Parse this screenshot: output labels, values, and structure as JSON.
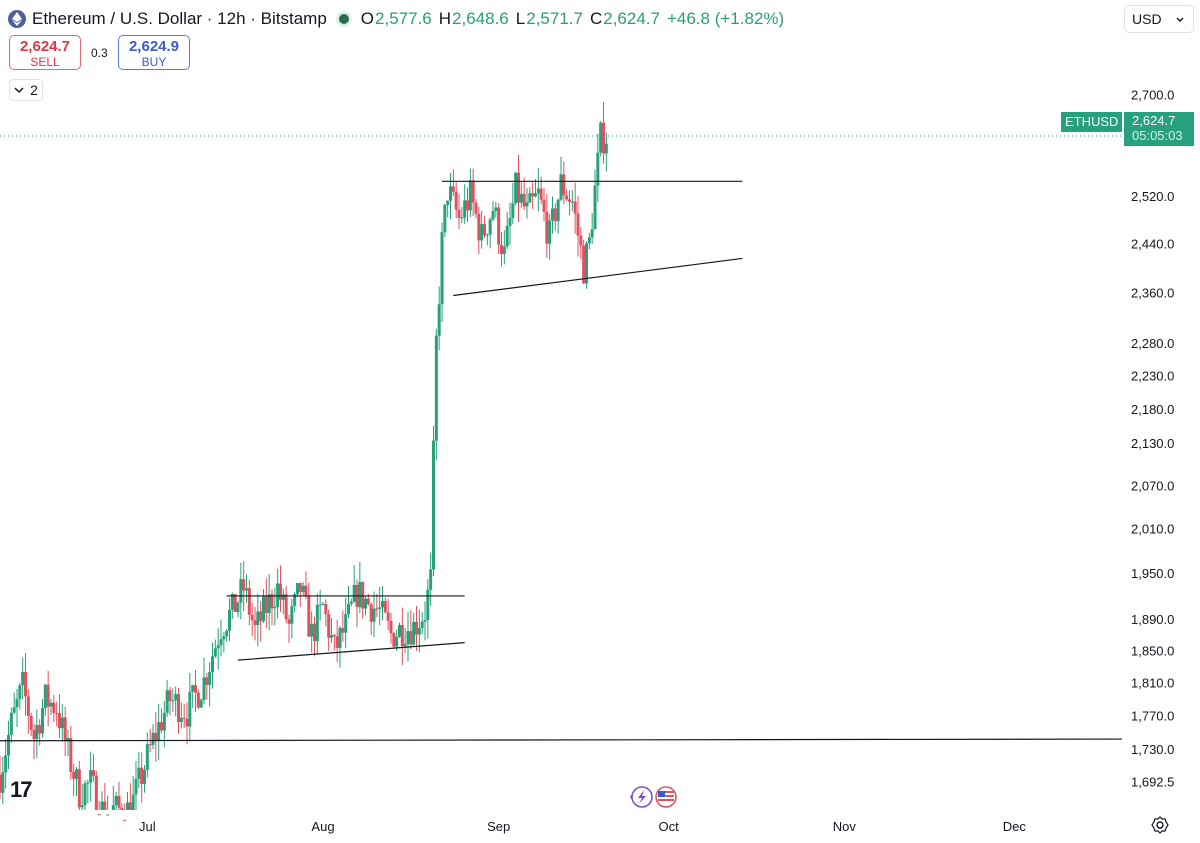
{
  "header": {
    "title": "Ethereum / U.S. Dollar · 12h · Bitstamp",
    "ohlc": [
      {
        "k": "O",
        "v": "2,577.6"
      },
      {
        "k": "H",
        "v": "2,648.6"
      },
      {
        "k": "L",
        "v": "2,571.7"
      },
      {
        "k": "C",
        "v": "2,624.7"
      }
    ],
    "change": "+46.8 (+1.82%)",
    "colors": {
      "up": "#26a17b",
      "down": "#e2505e",
      "line": "#131722"
    }
  },
  "trade": {
    "sell_price": "2,624.7",
    "sell_label": "SELL",
    "spread": "0.3",
    "buy_price": "2,624.9",
    "buy_label": "BUY"
  },
  "indicators_collapse": {
    "count": "2"
  },
  "currency": "USD",
  "last_price": {
    "symbol": "ETHUSD",
    "price": "2,624.7",
    "countdown": "05:05:03"
  },
  "branding": {
    "logo_text": "17"
  },
  "chart_data": {
    "type": "candlestick",
    "interval": "12h",
    "y_scale": "log",
    "ylim": [
      1660,
      2760
    ],
    "y_ticks": [
      2700.0,
      2520.0,
      2440.0,
      2360.0,
      2280.0,
      2230.0,
      2180.0,
      2130.0,
      2070.0,
      2010.0,
      1950.0,
      1890.0,
      1850.0,
      1810.0,
      1770.0,
      1730.0,
      1692.5
    ],
    "x_ticks": [
      "Jul",
      "Aug",
      "Sep",
      "Oct",
      "Nov",
      "Dec"
    ],
    "x_tick_dates": [
      "2024-07-01",
      "2024-08-01",
      "2024-09-01",
      "2024-10-01",
      "2024-11-01",
      "2024-12-01"
    ],
    "x_range": [
      "2024-06-05",
      "2024-12-20"
    ],
    "last_close": 2624.7,
    "close_path": [
      [
        "2024-06-05T00:00",
        1700
      ],
      [
        "2024-06-07T00:00",
        1760
      ],
      [
        "2024-06-09T00:00",
        1805
      ],
      [
        "2024-06-11T00:00",
        1745
      ],
      [
        "2024-06-13T00:00",
        1790
      ],
      [
        "2024-06-15T00:00",
        1780
      ],
      [
        "2024-06-17T00:00",
        1725
      ],
      [
        "2024-06-19T00:00",
        1680
      ],
      [
        "2024-06-21T00:00",
        1690
      ],
      [
        "2024-06-23T00:00",
        1660
      ],
      [
        "2024-06-28T00:00",
        1660
      ],
      [
        "2024-06-30T00:00",
        1700
      ],
      [
        "2024-07-02T00:00",
        1740
      ],
      [
        "2024-07-05T00:00",
        1790
      ],
      [
        "2024-07-08T00:00",
        1775
      ],
      [
        "2024-07-11T00:00",
        1812
      ],
      [
        "2024-07-14T00:00",
        1880
      ],
      [
        "2024-07-16T00:00",
        1900
      ],
      [
        "2024-07-18T00:00",
        1930
      ],
      [
        "2024-07-20T00:00",
        1875
      ],
      [
        "2024-07-22T00:00",
        1905
      ],
      [
        "2024-07-24T00:00",
        1930
      ],
      [
        "2024-07-26T00:00",
        1880
      ],
      [
        "2024-07-28T00:00",
        1930
      ],
      [
        "2024-07-30T00:00",
        1870
      ],
      [
        "2024-08-01T00:00",
        1905
      ],
      [
        "2024-08-03T00:00",
        1850
      ],
      [
        "2024-08-05T00:00",
        1880
      ],
      [
        "2024-08-07T00:00",
        1925
      ],
      [
        "2024-08-09T00:00",
        1910
      ],
      [
        "2024-08-11T00:00",
        1900
      ],
      [
        "2024-08-13T00:00",
        1870
      ],
      [
        "2024-08-15T00:00",
        1878
      ],
      [
        "2024-08-17T00:00",
        1880
      ],
      [
        "2024-08-19T00:00",
        1900
      ],
      [
        "2024-08-20T00:00",
        1940
      ],
      [
        "2024-08-21T00:00",
        2280
      ],
      [
        "2024-08-22T00:00",
        2440
      ],
      [
        "2024-08-23T00:00",
        2530
      ],
      [
        "2024-08-25T00:00",
        2480
      ],
      [
        "2024-08-27T00:00",
        2520
      ],
      [
        "2024-08-29T00:00",
        2450
      ],
      [
        "2024-08-31T00:00",
        2500
      ],
      [
        "2024-09-02T00:00",
        2420
      ],
      [
        "2024-09-04T00:00",
        2530
      ],
      [
        "2024-09-06T00:00",
        2490
      ],
      [
        "2024-09-08T00:00",
        2520
      ],
      [
        "2024-09-10T00:00",
        2450
      ],
      [
        "2024-09-12T00:00",
        2540
      ],
      [
        "2024-09-14T00:00",
        2510
      ],
      [
        "2024-09-16T00:00",
        2400
      ],
      [
        "2024-09-17T00:00",
        2440
      ],
      [
        "2024-09-18T00:00",
        2530
      ],
      [
        "2024-09-19T00:00",
        2620
      ],
      [
        "2024-09-20T00:00",
        2625
      ]
    ],
    "annotations": {
      "lines": [
        {
          "name": "lower-flag-resistance",
          "from": [
            "2024-07-15",
            1920
          ],
          "to": [
            "2024-08-26",
            1920
          ]
        },
        {
          "name": "lower-flag-support",
          "from": [
            "2024-07-17",
            1838
          ],
          "to": [
            "2024-08-26",
            1860
          ]
        },
        {
          "name": "upper-flag-resistance",
          "from": [
            "2024-08-22",
            2545
          ],
          "to": [
            "2024-10-14",
            2545
          ]
        },
        {
          "name": "upper-flag-support",
          "from": [
            "2024-08-24",
            2355
          ],
          "to": [
            "2024-10-14",
            2415
          ]
        },
        {
          "name": "horizontal-support",
          "from": [
            "2024-06-05",
            1740
          ],
          "to": [
            "2024-12-20",
            1742
          ]
        }
      ]
    }
  }
}
